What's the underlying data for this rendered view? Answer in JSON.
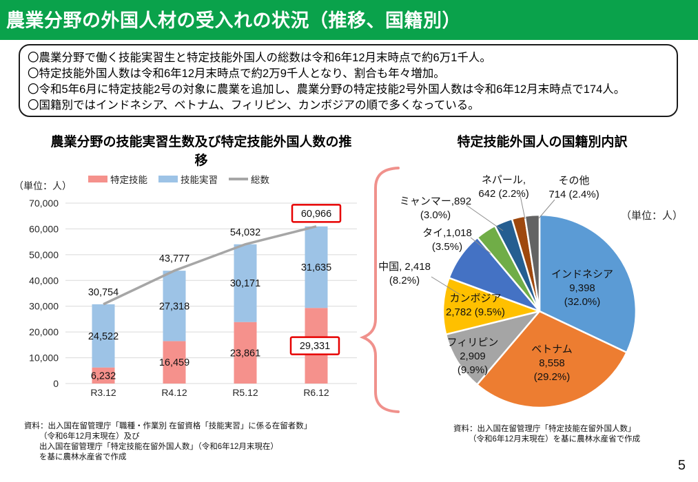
{
  "header": {
    "title": "農業分野の外国人材の受入れの状況（推移、国籍別）"
  },
  "summary": {
    "bullets": [
      "〇農業分野で働く技能実習生と特定技能外国人の総数は令和6年12月末時点で約6万1千人。",
      "〇特定技能外国人数は令和6年12月末時点で約2万9千人となり、割合も年々増加。",
      "〇令和5年6月に特定技能2号の対象に農業を追加し、農業分野の特定技能2号外国人数は令和6年12月末時点で174人。",
      "〇国籍別ではインドネシア、ベトナム、フィリピン、カンボジアの順で多くなっている。"
    ]
  },
  "chart_data": [
    {
      "type": "bar",
      "title": "農業分野の技能実習生数及び特定技能外国人数の推移",
      "unit_label": "（単位：人）",
      "categories": [
        "R3.12",
        "R4.12",
        "R5.12",
        "R6.12"
      ],
      "series": [
        {
          "name": "特定技能",
          "kind": "bar",
          "color": "#F5918C",
          "values": [
            6232,
            16459,
            23861,
            29331
          ]
        },
        {
          "name": "技能実習",
          "kind": "bar",
          "color": "#9DC3E6",
          "values": [
            24522,
            27318,
            30171,
            31635
          ]
        },
        {
          "name": "総数",
          "kind": "line",
          "color": "#A6A6A6",
          "values": [
            30754,
            43777,
            54032,
            60966
          ]
        }
      ],
      "ylim": [
        0,
        70000
      ],
      "ytick_step": 10000,
      "grid": true,
      "legend_position": "top",
      "highlight": {
        "category_index": 3,
        "color": "#E60000",
        "targets": [
          "総数",
          "特定技能"
        ]
      },
      "source": [
        "資料：出入国在留管理庁「職種・作業別 在留資格「技能実習」に係る在留者数」",
        "（令和6年12月末現在）及び",
        "出入国在留管理庁「特定技能在留外国人数」（令和6年12月末現在）",
        "を基に農林水産省で作成"
      ]
    },
    {
      "type": "pie",
      "title": "特定技能外国人の国籍別内訳",
      "unit_label": "（単位：人）",
      "start_angle_deg": 0,
      "direction": "clockwise",
      "slices": [
        {
          "label": "インドネシア",
          "value": 9398,
          "pct": 32.0,
          "color": "#5B9BD5",
          "display": [
            "インドネシア",
            "9,398",
            "(32.0%)"
          ]
        },
        {
          "label": "ベトナム",
          "value": 8558,
          "pct": 29.2,
          "color": "#ED7D31",
          "display": [
            "ベトナム",
            "8,558",
            "(29.2%)"
          ]
        },
        {
          "label": "フィリピン",
          "value": 2909,
          "pct": 9.9,
          "color": "#A5A5A5",
          "display": [
            "フィリピン",
            "2,909",
            "(9.9%)"
          ]
        },
        {
          "label": "カンボジア",
          "value": 2782,
          "pct": 9.5,
          "color": "#FFC000",
          "display": [
            "カンボジア",
            "2,782 (9.5%)"
          ]
        },
        {
          "label": "中国",
          "value": 2418,
          "pct": 8.2,
          "color": "#4472C4",
          "display": [
            "中国, 2,418",
            "(8.2%)"
          ]
        },
        {
          "label": "タイ",
          "value": 1018,
          "pct": 3.5,
          "color": "#70AD47",
          "display": [
            "タイ,1,018",
            "(3.5%)"
          ]
        },
        {
          "label": "ミャンマー",
          "value": 892,
          "pct": 3.0,
          "color": "#255E91",
          "display": [
            "ミャンマー,892",
            "(3.0%)"
          ]
        },
        {
          "label": "ネパール",
          "value": 642,
          "pct": 2.2,
          "color": "#9E480E",
          "display": [
            "ネパール,",
            "642 (2.2%)"
          ]
        },
        {
          "label": "その他",
          "value": 714,
          "pct": 2.4,
          "color": "#636363",
          "display": [
            "その他",
            "714 (2.4%)"
          ]
        }
      ],
      "source": [
        "資料：出入国在留管理庁「特定技能在留外国人数」",
        "（令和6年12月末現在）を基に農林水産省で作成"
      ]
    }
  ],
  "connector_color": "#F0918C",
  "page_number": "5"
}
